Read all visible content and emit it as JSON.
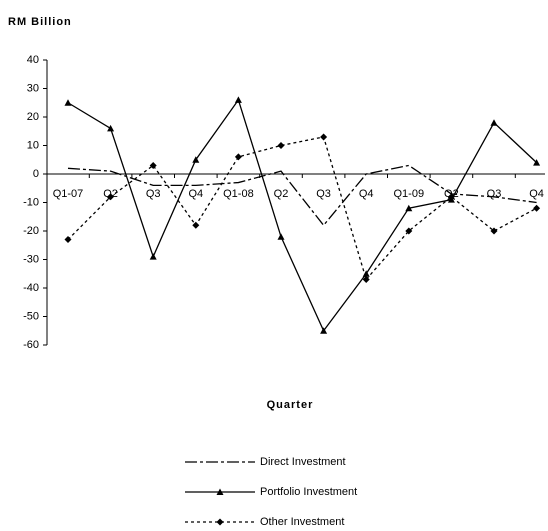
{
  "chart_data": {
    "type": "line",
    "y_label": "RM Billion",
    "x_label": "Quarter",
    "categories": [
      "Q1-07",
      "Q2",
      "Q3",
      "Q4",
      "Q1-08",
      "Q2",
      "Q3",
      "Q4",
      "Q1-09",
      "Q2",
      "Q3",
      "Q4"
    ],
    "series": [
      {
        "name": "Direct Investment",
        "color": "#000000",
        "dash": "12 3 3 3",
        "marker": "none",
        "values": [
          2,
          1,
          -4,
          -4,
          -3,
          1,
          -18,
          0,
          3,
          -7,
          -8,
          -10
        ]
      },
      {
        "name": "Portfolio Investment",
        "color": "#000000",
        "dash": "none",
        "marker": "triangle",
        "values": [
          25,
          16,
          -29,
          5,
          26,
          -22,
          -55,
          -35,
          -12,
          -9,
          18,
          4
        ]
      },
      {
        "name": "Other Investment",
        "color": "#000000",
        "dash": "3 3",
        "marker": "diamond",
        "values": [
          -23,
          -8,
          3,
          -18,
          6,
          10,
          13,
          -37,
          -20,
          -8,
          -20,
          -12
        ]
      }
    ],
    "ylim": [
      -60,
      40
    ],
    "yticks": [
      -60,
      -50,
      -40,
      -30,
      -20,
      -10,
      0,
      10,
      20,
      30,
      40
    ],
    "grid": false,
    "legend": "bottom"
  }
}
